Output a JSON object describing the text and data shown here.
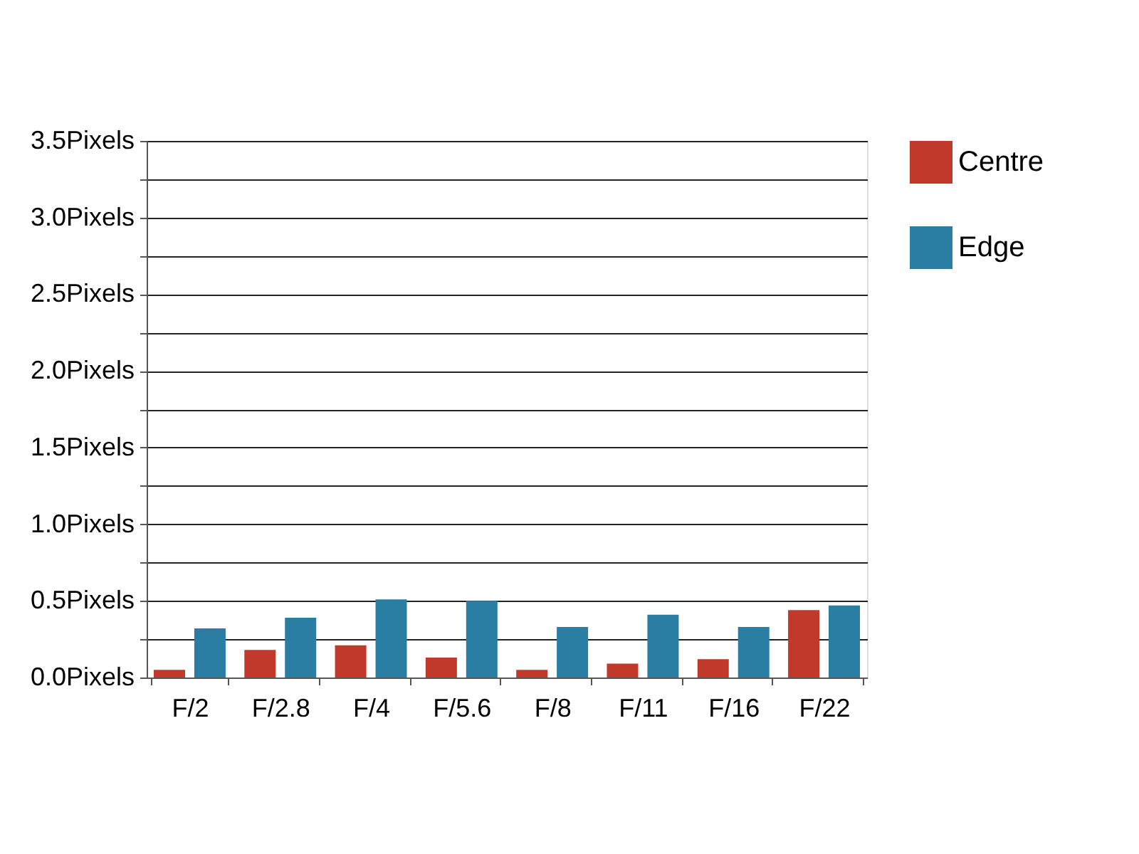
{
  "chart_data": {
    "type": "bar",
    "categories": [
      "F/2",
      "F/2.8",
      "F/4",
      "F/5.6",
      "F/8",
      "F/11",
      "F/16",
      "F/22"
    ],
    "series": [
      {
        "name": "Centre",
        "color": "#c0392b",
        "values": [
          0.05,
          0.18,
          0.21,
          0.13,
          0.05,
          0.09,
          0.12,
          0.44
        ]
      },
      {
        "name": "Edge",
        "color": "#2a7ea3",
        "values": [
          0.32,
          0.39,
          0.51,
          0.5,
          0.33,
          0.41,
          0.33,
          0.47
        ]
      }
    ],
    "ylim": [
      0,
      3.5
    ],
    "yticks": [
      {
        "value": 0,
        "label": "0.0Pixels"
      },
      {
        "value": 0.25,
        "label": null
      },
      {
        "value": 0.5,
        "label": "0.5Pixels"
      },
      {
        "value": 0.75,
        "label": null
      },
      {
        "value": 1.0,
        "label": "1.0Pixels"
      },
      {
        "value": 1.25,
        "label": null
      },
      {
        "value": 1.5,
        "label": "1.5Pixels"
      },
      {
        "value": 1.75,
        "label": null
      },
      {
        "value": 2.0,
        "label": "2.0Pixels"
      },
      {
        "value": 2.25,
        "label": null
      },
      {
        "value": 2.5,
        "label": "2.5Pixels"
      },
      {
        "value": 2.75,
        "label": null
      },
      {
        "value": 3.0,
        "label": "3.0Pixels"
      },
      {
        "value": 3.25,
        "label": null
      },
      {
        "value": 3.5,
        "label": "3.5Pixels"
      }
    ],
    "grid": "y",
    "legend": "top right"
  }
}
